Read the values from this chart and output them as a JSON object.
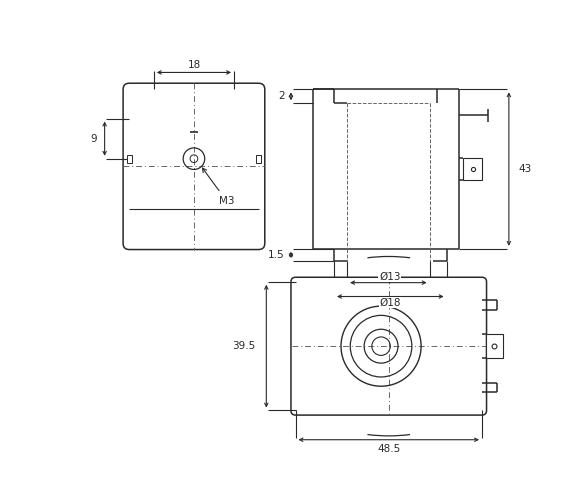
{
  "bg_color": "#ffffff",
  "line_color": "#2a2a2a",
  "dim_color": "#2a2a2a",
  "dash_color": "#666666",
  "fig_width": 5.79,
  "fig_height": 5.01,
  "dpi": 100,
  "labels": {
    "dim18": "18",
    "dim9": "9",
    "dimM3": "M3",
    "dim2": "2",
    "dim43": "43",
    "dim15": "1.5",
    "dimd13": "Ø13",
    "dimd18": "Ø18",
    "dim395": "39.5",
    "dim485": "48.5"
  }
}
